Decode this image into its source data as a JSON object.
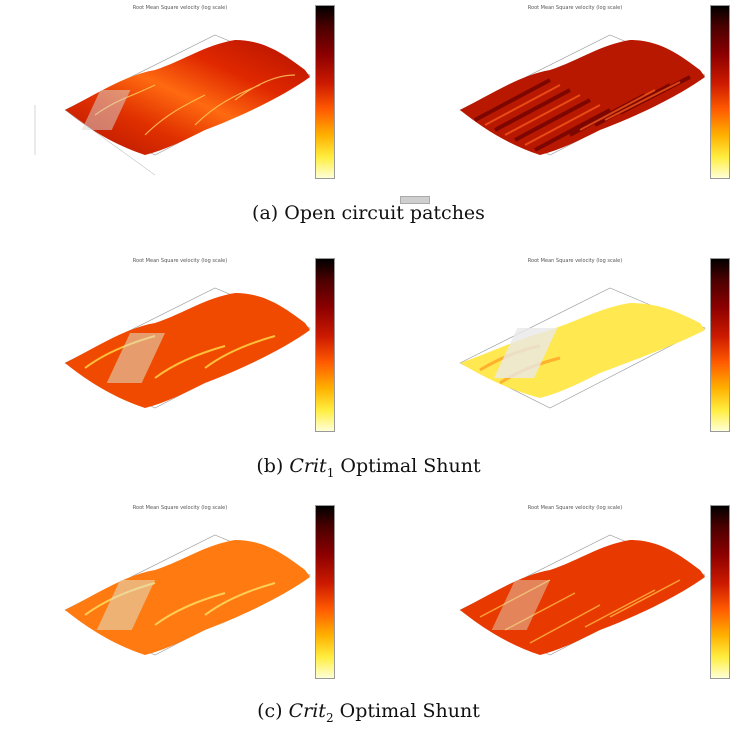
{
  "plot_title": "Root Mean Square velocity (log scale)",
  "captions": {
    "a": "(a) Open circuit patches",
    "b_prefix": "(b) ",
    "b_crit": "Crit",
    "b_sub": "1",
    "b_suffix": " Optimal Shunt",
    "c_prefix": "(c) ",
    "c_crit": "Crit",
    "c_sub": "2",
    "c_suffix": " Optimal Shunt"
  },
  "colormap": {
    "top": "#000000",
    "dark_red": "#8b0000",
    "red": "#cc1a00",
    "orange": "#ff5a00",
    "yellow": "#ffee40",
    "pale": "#ffffd8"
  }
}
